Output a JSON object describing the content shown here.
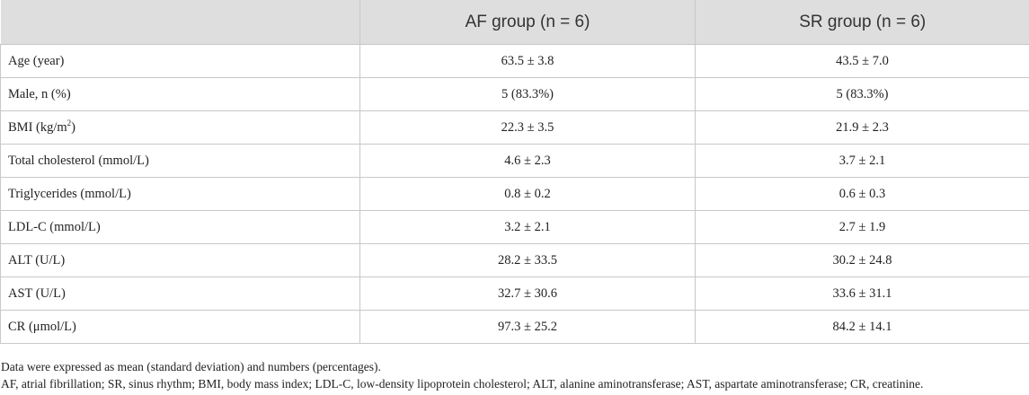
{
  "table": {
    "headers": [
      "",
      "AF group (n = 6)",
      "SR group (n = 6)"
    ],
    "rows": [
      {
        "label": "Age (year)",
        "af": "63.5 ± 3.8",
        "sr": "43.5 ± 7.0"
      },
      {
        "label": "Male, n (%)",
        "af": "5 (83.3%)",
        "sr": "5 (83.3%)"
      },
      {
        "label": "BMI (kg/m",
        "label_sup": "2",
        "label_tail": ")",
        "af": "22.3 ± 3.5",
        "sr": "21.9 ± 2.3"
      },
      {
        "label": "Total cholesterol (mmol/L)",
        "af": "4.6 ± 2.3",
        "sr": "3.7 ± 2.1"
      },
      {
        "label": "Triglycerides (mmol/L)",
        "af": "0.8 ± 0.2",
        "sr": "0.6 ± 0.3"
      },
      {
        "label": "LDL-C (mmol/L)",
        "af": "3.2 ± 2.1",
        "sr": "2.7 ± 1.9"
      },
      {
        "label": "ALT (U/L)",
        "af": "28.2 ± 33.5",
        "sr": "30.2 ± 24.8"
      },
      {
        "label": "AST (U/L)",
        "af": "32.7 ± 30.6",
        "sr": "33.6 ± 31.1"
      },
      {
        "label": "CR (μmol/L)",
        "af": "97.3 ± 25.2",
        "sr": "84.2 ± 14.1"
      }
    ]
  },
  "footnotes": [
    "Data were expressed as mean (standard deviation) and numbers (percentages).",
    "AF, atrial fibrillation; SR, sinus rhythm; BMI, body mass index; LDL-C, low-density lipoprotein cholesterol; ALT, alanine aminotransferase; AST, aspartate aminotransferase; CR, creatinine."
  ]
}
